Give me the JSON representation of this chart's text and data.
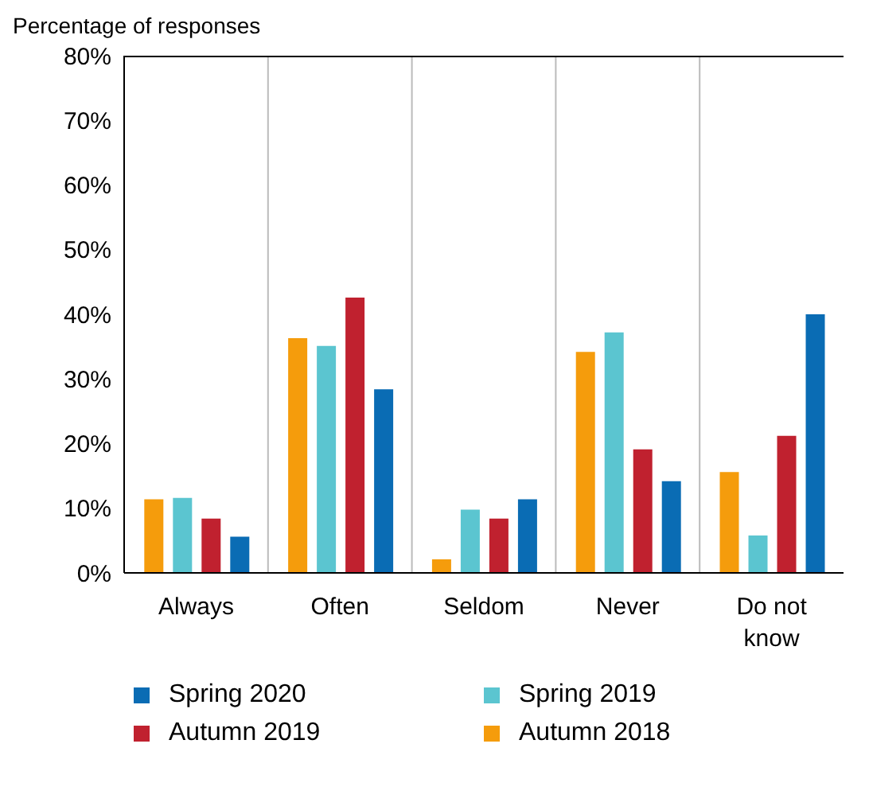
{
  "chart_data": {
    "type": "bar",
    "ylabel": "Percentage of responses",
    "categories": [
      "Always",
      "Often",
      "Seldom",
      "Never",
      "Do not know"
    ],
    "series": [
      {
        "name": "Autumn 2018",
        "color": "#f59c0c",
        "values": [
          11.4,
          36.3,
          2.1,
          34.2,
          15.6
        ]
      },
      {
        "name": "Spring 2019",
        "color": "#5bc5d0",
        "values": [
          11.6,
          35.1,
          9.8,
          37.2,
          5.8
        ]
      },
      {
        "name": "Autumn 2019",
        "color": "#c0212f",
        "values": [
          8.4,
          42.6,
          8.4,
          19.1,
          21.2
        ]
      },
      {
        "name": "Spring 2020",
        "color": "#0a6cb4",
        "values": [
          5.6,
          28.4,
          11.4,
          14.2,
          40
        ]
      }
    ],
    "ylim": [
      0,
      80
    ],
    "yticks": [
      {
        "value": 0,
        "label": "0%"
      },
      {
        "value": 10,
        "label": "10%"
      },
      {
        "value": 20,
        "label": "20%"
      },
      {
        "value": 30,
        "label": "30%"
      },
      {
        "value": 40,
        "label": "40%"
      },
      {
        "value": 50,
        "label": "50%"
      },
      {
        "value": 60,
        "label": "60%"
      },
      {
        "value": 70,
        "label": "70%"
      },
      {
        "value": 80,
        "label": "80%"
      }
    ],
    "grid": "x",
    "legend": "bottom"
  }
}
